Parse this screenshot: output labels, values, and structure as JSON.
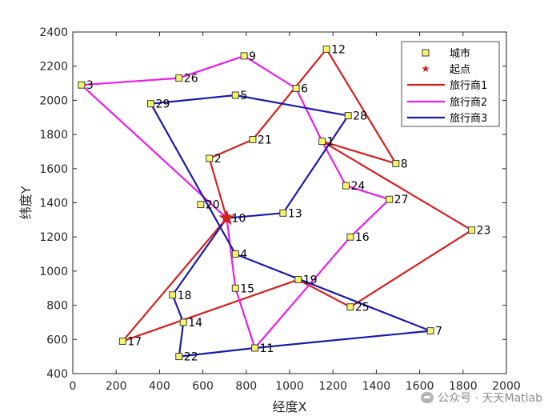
{
  "chart_data": {
    "type": "scatter",
    "xlabel": "经度X",
    "ylabel": "纬度Y",
    "xlim": [
      0,
      2000
    ],
    "ylim": [
      400,
      2400
    ],
    "xticks": [
      0,
      200,
      400,
      600,
      800,
      1000,
      1200,
      1400,
      1600,
      1800,
      2000
    ],
    "yticks": [
      400,
      600,
      800,
      1000,
      1200,
      1400,
      1600,
      1800,
      2000,
      2200,
      2400
    ],
    "grid": false,
    "legend_position": "top-right",
    "cities": [
      {
        "id": "1",
        "x": 1150,
        "y": 1760
      },
      {
        "id": "2",
        "x": 630,
        "y": 1660
      },
      {
        "id": "3",
        "x": 40,
        "y": 2090
      },
      {
        "id": "4",
        "x": 750,
        "y": 1100
      },
      {
        "id": "5",
        "x": 750,
        "y": 2030
      },
      {
        "id": "6",
        "x": 1030,
        "y": 2070
      },
      {
        "id": "7",
        "x": 1650,
        "y": 650
      },
      {
        "id": "8",
        "x": 1490,
        "y": 1630
      },
      {
        "id": "9",
        "x": 790,
        "y": 2260
      },
      {
        "id": "10",
        "x": 710,
        "y": 1310
      },
      {
        "id": "11",
        "x": 840,
        "y": 550
      },
      {
        "id": "12",
        "x": 1170,
        "y": 2300
      },
      {
        "id": "13",
        "x": 970,
        "y": 1340
      },
      {
        "id": "14",
        "x": 510,
        "y": 700
      },
      {
        "id": "15",
        "x": 750,
        "y": 900
      },
      {
        "id": "16",
        "x": 1280,
        "y": 1200
      },
      {
        "id": "17",
        "x": 230,
        "y": 590
      },
      {
        "id": "18",
        "x": 460,
        "y": 860
      },
      {
        "id": "19",
        "x": 1040,
        "y": 950
      },
      {
        "id": "20",
        "x": 590,
        "y": 1390
      },
      {
        "id": "21",
        "x": 830,
        "y": 1770
      },
      {
        "id": "22",
        "x": 490,
        "y": 500
      },
      {
        "id": "23",
        "x": 1840,
        "y": 1240
      },
      {
        "id": "24",
        "x": 1260,
        "y": 1500
      },
      {
        "id": "25",
        "x": 1280,
        "y": 790
      },
      {
        "id": "26",
        "x": 490,
        "y": 2130
      },
      {
        "id": "27",
        "x": 1460,
        "y": 1420
      },
      {
        "id": "28",
        "x": 1270,
        "y": 1910
      },
      {
        "id": "29",
        "x": 360,
        "y": 1980
      }
    ],
    "start": {
      "x": 710,
      "y": 1310
    },
    "series": [
      {
        "name": "旅行商1",
        "color": "#d42020",
        "route": [
          "10",
          "2",
          "21",
          "12",
          "8",
          "1",
          "23",
          "25",
          "19",
          "17",
          "10"
        ]
      },
      {
        "name": "旅行商2",
        "color": "#e81ee8",
        "route": [
          "10",
          "3",
          "26",
          "9",
          "6",
          "1",
          "24",
          "27",
          "16",
          "11",
          "15",
          "10"
        ]
      },
      {
        "name": "旅行商3",
        "color": "#1a1aa8",
        "route": [
          "10",
          "13",
          "28",
          "5",
          "29",
          "4",
          "7",
          "11",
          "22",
          "14",
          "18",
          "10"
        ]
      }
    ],
    "legend": {
      "city": "城市",
      "start": "起点"
    },
    "marker_colors": {
      "city_fill": "#f5f56b",
      "city_edge": "#2b2b2b",
      "start": "#d42020"
    }
  },
  "watermark": "公众号 · 天天Matlab"
}
